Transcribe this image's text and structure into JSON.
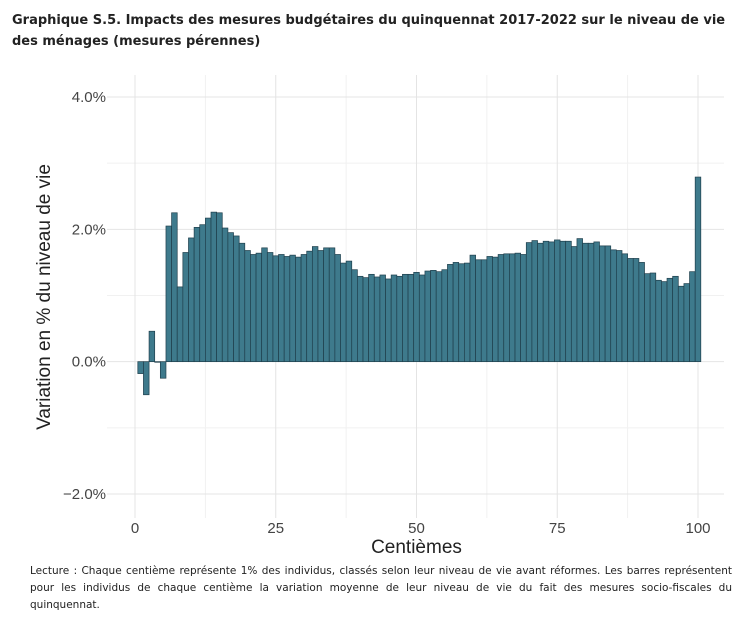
{
  "chart_data": {
    "type": "bar",
    "title": "Graphique S.5. Impacts des mesures budgétaires du quinquennat 2017-2022 sur le niveau de vie des ménages (mesures pérennes)",
    "xlabel": "Centièmes",
    "ylabel": "Variation en % du niveau de vie",
    "xlim": [
      0,
      100
    ],
    "ylim": [
      -2.0,
      4.0
    ],
    "x_ticks": [
      0,
      25,
      50,
      75,
      100
    ],
    "x_tick_labels": [
      "0",
      "25",
      "50",
      "75",
      "100"
    ],
    "y_ticks": [
      -2.0,
      0.0,
      2.0,
      4.0
    ],
    "y_tick_labels": [
      "−2.0%",
      "0.0%",
      "2.0%",
      "4.0%"
    ],
    "grid": true,
    "bar_color": "#3e7a8c",
    "bar_edge_color": "#1f3f4c",
    "x": [
      1,
      2,
      3,
      4,
      5,
      6,
      7,
      8,
      9,
      10,
      11,
      12,
      13,
      14,
      15,
      16,
      17,
      18,
      19,
      20,
      21,
      22,
      23,
      24,
      25,
      26,
      27,
      28,
      29,
      30,
      31,
      32,
      33,
      34,
      35,
      36,
      37,
      38,
      39,
      40,
      41,
      42,
      43,
      44,
      45,
      46,
      47,
      48,
      49,
      50,
      51,
      52,
      53,
      54,
      55,
      56,
      57,
      58,
      59,
      60,
      61,
      62,
      63,
      64,
      65,
      66,
      67,
      68,
      69,
      70,
      71,
      72,
      73,
      74,
      75,
      76,
      77,
      78,
      79,
      80,
      81,
      82,
      83,
      84,
      85,
      86,
      87,
      88,
      89,
      90,
      91,
      92,
      93,
      94,
      95,
      96,
      97,
      98,
      99,
      100
    ],
    "values": [
      -0.18,
      -0.5,
      0.46,
      0.0,
      -0.25,
      2.05,
      2.25,
      1.13,
      1.65,
      1.87,
      2.03,
      2.07,
      2.17,
      2.26,
      2.25,
      2.02,
      1.95,
      1.9,
      1.79,
      1.68,
      1.62,
      1.64,
      1.72,
      1.65,
      1.6,
      1.62,
      1.59,
      1.61,
      1.58,
      1.62,
      1.67,
      1.74,
      1.68,
      1.72,
      1.72,
      1.62,
      1.49,
      1.52,
      1.39,
      1.29,
      1.27,
      1.32,
      1.28,
      1.31,
      1.25,
      1.31,
      1.29,
      1.32,
      1.32,
      1.35,
      1.31,
      1.37,
      1.38,
      1.36,
      1.39,
      1.47,
      1.5,
      1.48,
      1.49,
      1.61,
      1.54,
      1.54,
      1.59,
      1.58,
      1.62,
      1.63,
      1.63,
      1.64,
      1.62,
      1.8,
      1.83,
      1.79,
      1.82,
      1.81,
      1.84,
      1.82,
      1.82,
      1.74,
      1.86,
      1.79,
      1.79,
      1.81,
      1.75,
      1.75,
      1.69,
      1.68,
      1.63,
      1.56,
      1.56,
      1.5,
      1.33,
      1.34,
      1.23,
      1.21,
      1.26,
      1.29,
      1.14,
      1.18,
      1.36,
      2.79
    ]
  },
  "note": "Lecture : Chaque centième représente 1% des individus, classés selon leur niveau de vie avant réformes. Les barres représentent pour les individus de chaque centième la variation moyenne de leur niveau de vie du fait des mesures socio-fiscales du quinquennat."
}
